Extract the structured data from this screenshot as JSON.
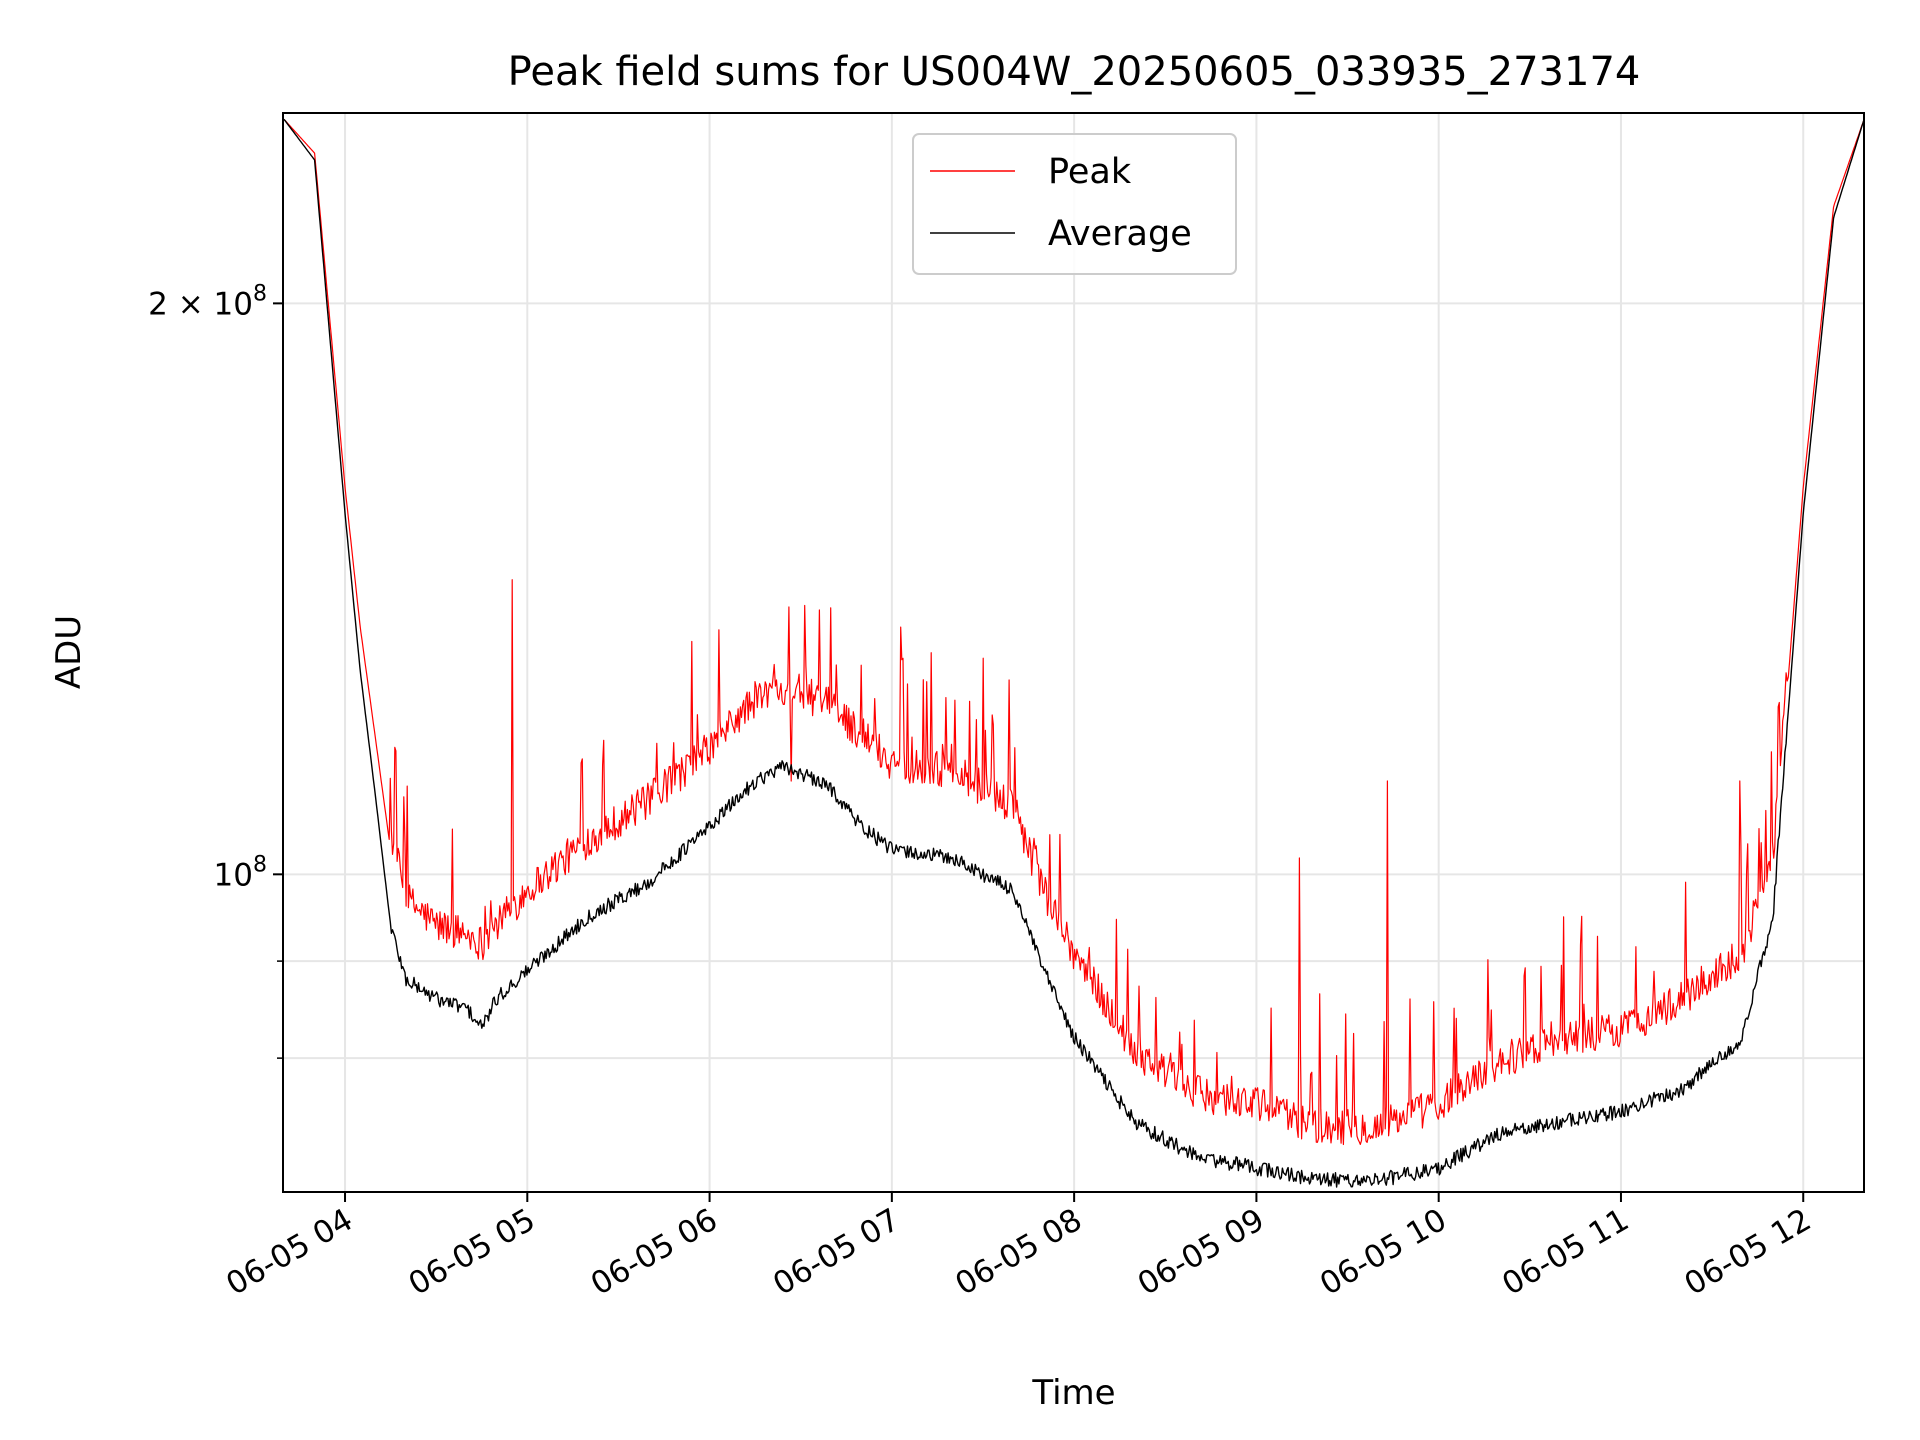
{
  "chart_data": {
    "type": "line",
    "title": "Peak field sums for US004W_20250605_033935_273174",
    "xlabel": "Time",
    "ylabel": "ADU",
    "yscale": "log",
    "xlim": [
      "2025-06-05 03:39:35",
      "2025-06-05 12:20:00"
    ],
    "ylim": [
      68000000,
      252000000
    ],
    "x_ticks": [
      "06-05 04",
      "06-05 05",
      "06-05 06",
      "06-05 07",
      "06-05 08",
      "06-05 09",
      "06-05 10",
      "06-05 11",
      "06-05 12"
    ],
    "y_major_ticks": [
      {
        "value": 100000000,
        "label_base": "10",
        "label_exp": "8",
        "label_prefix": ""
      },
      {
        "value": 200000000,
        "label_base": "10",
        "label_exp": "8",
        "label_prefix": "2 × "
      }
    ],
    "y_minor_ticks": [
      80000000,
      90000000
    ],
    "grid": true,
    "legend": "top-center",
    "series": [
      {
        "name": "Peak",
        "color": "#ff0000",
        "x": [
          "03:40",
          "03:50",
          "04:00",
          "04:05",
          "04:10",
          "04:15",
          "04:20",
          "04:30",
          "04:40",
          "04:45",
          "04:50",
          "05:00",
          "05:20",
          "05:40",
          "06:00",
          "06:15",
          "06:25",
          "06:40",
          "06:50",
          "07:00",
          "07:20",
          "07:40",
          "07:50",
          "08:00",
          "08:20",
          "08:40",
          "09:00",
          "09:20",
          "09:40",
          "10:00",
          "10:20",
          "10:40",
          "11:00",
          "11:20",
          "11:40",
          "11:50",
          "12:00",
          "12:10",
          "12:20"
        ],
        "y": [
          250000000,
          240000000,
          160000000,
          135000000,
          118000000,
          103000000,
          95000000,
          92000000,
          91000000,
          90000000,
          92000000,
          96000000,
          102000000,
          107000000,
          114000000,
          121000000,
          123000000,
          120000000,
          116000000,
          112000000,
          111000000,
          106000000,
          96000000,
          89000000,
          79000000,
          75000000,
          74000000,
          72000000,
          72000000,
          74000000,
          78000000,
          80000000,
          81000000,
          84000000,
          89000000,
          100000000,
          160000000,
          225000000,
          250000000
        ],
        "spikes": [
          {
            "x": "04:55",
            "y": 143000000
          },
          {
            "x": "06:27",
            "y": 112000000
          },
          {
            "x": "07:03",
            "y": 135000000
          },
          {
            "x": "09:14",
            "y": 102000000
          },
          {
            "x": "09:43",
            "y": 112000000
          },
          {
            "x": "11:39",
            "y": 112000000
          }
        ]
      },
      {
        "name": "Average",
        "color": "#000000",
        "x": [
          "03:40",
          "03:50",
          "04:00",
          "04:05",
          "04:10",
          "04:15",
          "04:20",
          "04:30",
          "04:40",
          "04:45",
          "04:50",
          "05:00",
          "05:20",
          "05:40",
          "06:00",
          "06:15",
          "06:25",
          "06:40",
          "06:50",
          "07:00",
          "07:20",
          "07:40",
          "07:50",
          "08:00",
          "08:20",
          "08:40",
          "09:00",
          "09:20",
          "09:40",
          "10:00",
          "10:20",
          "10:40",
          "11:00",
          "11:20",
          "11:40",
          "11:50",
          "12:00",
          "12:10",
          "12:20"
        ],
        "y": [
          250000000,
          238000000,
          155000000,
          128000000,
          110000000,
          94000000,
          88000000,
          86000000,
          85000000,
          83000000,
          86000000,
          89000000,
          95000000,
          99000000,
          106000000,
          112000000,
          114000000,
          111000000,
          106000000,
          103000000,
          102000000,
          98000000,
          89000000,
          82000000,
          74000000,
          71000000,
          70000000,
          69000000,
          69000000,
          70000000,
          73000000,
          74000000,
          75000000,
          77000000,
          82000000,
          95000000,
          155000000,
          222000000,
          250000000
        ]
      }
    ]
  }
}
